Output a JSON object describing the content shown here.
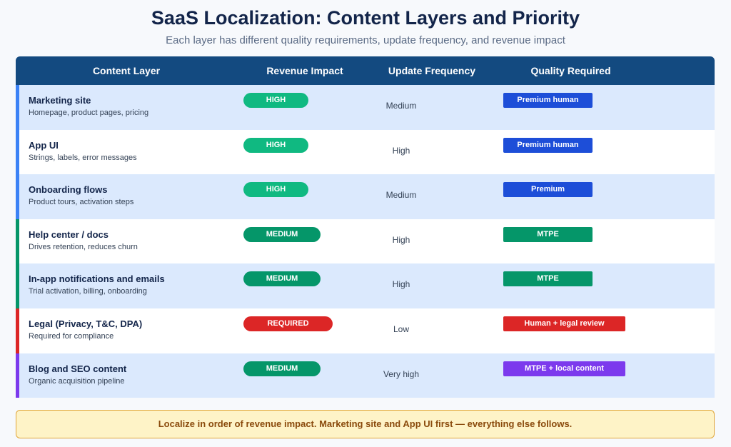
{
  "title": "SaaS Localization: Content Layers and Priority",
  "subtitle": "Each layer has different quality requirements, update frequency, and revenue impact",
  "columns": {
    "layer": "Content Layer",
    "revenue": "Revenue Impact",
    "frequency": "Update Frequency",
    "quality": "Quality Required"
  },
  "colors": {
    "header_bg": "#134a80",
    "row_alt": "#dbe9fd",
    "pill_high": "#10b981",
    "pill_medium": "#059669",
    "pill_required": "#dc2626",
    "qual_premium": "#1d4ed8",
    "qual_mtpe": "#059669",
    "qual_legal": "#dc2626",
    "qual_local": "#7c3aed",
    "accent_blue": "#3b82f6",
    "accent_green": "#059669",
    "accent_red": "#dc2626",
    "accent_purple": "#7c3aed"
  },
  "rows": [
    {
      "name": "Marketing site",
      "desc": "Homepage, product pages, pricing",
      "revenue": "HIGH",
      "frequency": "Medium",
      "quality": "Premium human"
    },
    {
      "name": "App UI",
      "desc": "Strings, labels, error messages",
      "revenue": "HIGH",
      "frequency": "High",
      "quality": "Premium human"
    },
    {
      "name": "Onboarding flows",
      "desc": "Product tours, activation steps",
      "revenue": "HIGH",
      "frequency": "Medium",
      "quality": "Premium"
    },
    {
      "name": "Help center / docs",
      "desc": "Drives retention, reduces churn",
      "revenue": "MEDIUM",
      "frequency": "High",
      "quality": "MTPE"
    },
    {
      "name": "In-app notifications and emails",
      "desc": "Trial activation, billing, onboarding",
      "revenue": "MEDIUM",
      "frequency": "High",
      "quality": "MTPE"
    },
    {
      "name": "Legal (Privacy, T&C, DPA)",
      "desc": "Required for compliance",
      "revenue": "REQUIRED",
      "frequency": "Low",
      "quality": "Human + legal review"
    },
    {
      "name": "Blog and SEO content",
      "desc": "Organic acquisition pipeline",
      "revenue": "MEDIUM",
      "frequency": "Very high",
      "quality": "MTPE + local content"
    }
  ],
  "footer": "Localize in order of revenue impact. Marketing site and App UI first — everything else follows."
}
